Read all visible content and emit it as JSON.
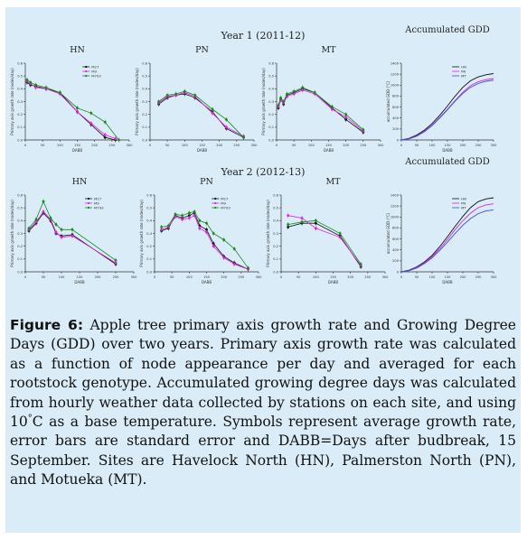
{
  "figure": {
    "row_titles": [
      "Year 1 (2011-12)",
      "Year 2 (2012-13)"
    ],
    "caption": {
      "label": "Figure 6:",
      "text_1": "Apple tree primary axis growth rate and Growing Degree Days (GDD) over two years. Primary axis growth rate was calculated as a function of node appearance per day and averaged for each rootstock genotype. Accumulated growing degree days was calculated from hourly weather data collected by stations on each site, and using 10",
      "degree": "°",
      "text_2": "C as a base temperature. Symbols represent average growth rate, error bars are standard error and DABB=Days after budbreak, 15 September. Sites are Havelock North (HN), Palmerston North (PN), and Motueka (MT)."
    }
  },
  "colors": {
    "M27": "#111111",
    "M9": "#e020e0",
    "M793": "#1a8a1a",
    "GDD_HN": "#111111",
    "GDD_PN": "#e020e0",
    "GDD_MT": "#3050e0"
  },
  "chart_data": [
    {
      "type": "line",
      "title": "HN",
      "year": "Year 1 (2011-12)",
      "xlabel": "DABB",
      "ylabel": "Primary axis growth rate (nodes/day)",
      "xlim": [
        0,
        300
      ],
      "ylim": [
        0,
        0.6
      ],
      "xticks": [
        "0",
        "50",
        "100",
        "150",
        "200",
        "250",
        "300"
      ],
      "yticks": [
        "0.0",
        "0.1",
        "0.2",
        "0.3",
        "0.4",
        "0.5",
        "0.6"
      ],
      "legend": [
        "M27",
        "M9",
        "M793"
      ],
      "series": [
        {
          "name": "M27",
          "x": [
            5,
            15,
            30,
            60,
            100,
            150,
            190,
            230,
            260
          ],
          "y": [
            0.45,
            0.43,
            0.42,
            0.4,
            0.37,
            0.22,
            0.12,
            0.02,
            0.0
          ]
        },
        {
          "name": "M9",
          "x": [
            5,
            15,
            30,
            60,
            100,
            150,
            190,
            230,
            260
          ],
          "y": [
            0.46,
            0.44,
            0.41,
            0.4,
            0.36,
            0.22,
            0.13,
            0.04,
            0.01
          ]
        },
        {
          "name": "M793",
          "x": [
            5,
            15,
            30,
            60,
            100,
            150,
            190,
            230,
            270
          ],
          "y": [
            0.47,
            0.45,
            0.43,
            0.41,
            0.37,
            0.25,
            0.21,
            0.14,
            0.0
          ]
        }
      ]
    },
    {
      "type": "line",
      "title": "PN",
      "year": "Year 1 (2011-12)",
      "xlabel": "DABB",
      "ylabel": "Primary axis growth rate (nodes/day)",
      "xlim": [
        0,
        300
      ],
      "ylim": [
        0,
        0.6
      ],
      "xticks": [
        "0",
        "50",
        "100",
        "150",
        "200",
        "250",
        "300"
      ],
      "yticks": [
        "0.0",
        "0.1",
        "0.2",
        "0.3",
        "0.4",
        "0.5",
        "0.6"
      ],
      "series": [
        {
          "name": "M27",
          "x": [
            25,
            50,
            75,
            100,
            130,
            180,
            220,
            270
          ],
          "y": [
            0.28,
            0.33,
            0.35,
            0.36,
            0.33,
            0.22,
            0.09,
            0.02
          ]
        },
        {
          "name": "M9",
          "x": [
            25,
            50,
            75,
            100,
            130,
            180,
            220,
            270
          ],
          "y": [
            0.29,
            0.34,
            0.35,
            0.37,
            0.34,
            0.21,
            0.1,
            0.03
          ]
        },
        {
          "name": "M793",
          "x": [
            25,
            50,
            75,
            100,
            130,
            180,
            220,
            270
          ],
          "y": [
            0.3,
            0.35,
            0.36,
            0.38,
            0.35,
            0.24,
            0.16,
            0.02
          ]
        }
      ]
    },
    {
      "type": "line",
      "title": "MT",
      "year": "Year 1 (2011-12)",
      "xlabel": "DABB",
      "ylabel": "Primary axis growth rate (nodes/day)",
      "xlim": [
        0,
        300
      ],
      "ylim": [
        0,
        0.6
      ],
      "xticks": [
        "0",
        "50",
        "100",
        "150",
        "200",
        "250",
        "300"
      ],
      "yticks": [
        "0.0",
        "0.1",
        "0.2",
        "0.3",
        "0.4",
        "0.5",
        "0.6"
      ],
      "series": [
        {
          "name": "M27",
          "x": [
            5,
            12,
            20,
            30,
            50,
            75,
            110,
            160,
            200,
            250
          ],
          "y": [
            0.25,
            0.32,
            0.28,
            0.35,
            0.37,
            0.4,
            0.37,
            0.25,
            0.16,
            0.06
          ]
        },
        {
          "name": "M9",
          "x": [
            5,
            12,
            20,
            30,
            50,
            75,
            110,
            160,
            200,
            250
          ],
          "y": [
            0.26,
            0.31,
            0.29,
            0.34,
            0.36,
            0.39,
            0.36,
            0.24,
            0.18,
            0.07
          ]
        },
        {
          "name": "M793",
          "x": [
            5,
            12,
            20,
            30,
            50,
            75,
            110,
            160,
            200,
            250
          ],
          "y": [
            0.27,
            0.33,
            0.3,
            0.36,
            0.38,
            0.41,
            0.37,
            0.26,
            0.2,
            0.08
          ]
        }
      ]
    },
    {
      "type": "line",
      "title": "Accumulated GDD",
      "year": "Year 1 (2011-12)",
      "xlabel": "DABB",
      "ylabel": "accumulated GDD (°C)",
      "xlim": [
        0,
        300
      ],
      "ylim": [
        0,
        1400
      ],
      "xticks": [
        "0",
        "50",
        "100",
        "150",
        "200",
        "250",
        "300"
      ],
      "yticks": [
        "0",
        "200",
        "400",
        "600",
        "800",
        "1000",
        "1200",
        "1400"
      ],
      "legend": [
        "HN",
        "PN",
        "MT"
      ],
      "series": [
        {
          "name": "HN",
          "x": [
            0,
            25,
            50,
            75,
            100,
            125,
            150,
            175,
            200,
            225,
            250,
            275,
            300
          ],
          "y": [
            0,
            30,
            90,
            180,
            300,
            450,
            620,
            800,
            960,
            1080,
            1150,
            1190,
            1210
          ]
        },
        {
          "name": "PN",
          "x": [
            0,
            25,
            50,
            75,
            100,
            125,
            150,
            175,
            200,
            225,
            250,
            275,
            300
          ],
          "y": [
            0,
            25,
            75,
            160,
            270,
            410,
            560,
            720,
            870,
            990,
            1060,
            1100,
            1120
          ]
        },
        {
          "name": "MT",
          "x": [
            0,
            25,
            50,
            75,
            100,
            125,
            150,
            175,
            200,
            225,
            250,
            275,
            300
          ],
          "y": [
            0,
            20,
            70,
            150,
            260,
            400,
            550,
            710,
            850,
            960,
            1030,
            1070,
            1090
          ]
        }
      ]
    },
    {
      "type": "line",
      "title": "HN",
      "year": "Year 2 (2012-13)",
      "xlabel": "DABB",
      "ylabel": "Primary axis growth rate (nodes/day)",
      "xlim": [
        0,
        300
      ],
      "ylim": [
        0,
        0.6
      ],
      "xticks": [
        "0",
        "50",
        "100",
        "150",
        "200",
        "250",
        "300"
      ],
      "yticks": [
        "0.0",
        "0.1",
        "0.2",
        "0.3",
        "0.4",
        "0.5",
        "0.6"
      ],
      "legend": [
        "M27",
        "M9",
        "M793"
      ],
      "series": [
        {
          "name": "M27",
          "x": [
            10,
            30,
            50,
            70,
            85,
            100,
            130,
            250
          ],
          "y": [
            0.32,
            0.38,
            0.46,
            0.4,
            0.3,
            0.28,
            0.29,
            0.06
          ]
        },
        {
          "name": "M9",
          "x": [
            10,
            30,
            50,
            70,
            85,
            100,
            130,
            250
          ],
          "y": [
            0.33,
            0.39,
            0.47,
            0.41,
            0.31,
            0.27,
            0.28,
            0.07
          ]
        },
        {
          "name": "M793",
          "x": [
            10,
            30,
            50,
            70,
            85,
            100,
            130,
            250
          ],
          "y": [
            0.34,
            0.41,
            0.55,
            0.42,
            0.37,
            0.33,
            0.33,
            0.09
          ]
        }
      ]
    },
    {
      "type": "line",
      "title": "PN",
      "year": "Year 2 (2012-13)",
      "xlabel": "DABB",
      "ylabel": "Primary axis growth rate (nodes/day)",
      "xlim": [
        0,
        300
      ],
      "ylim": [
        0,
        0.6
      ],
      "xticks": [
        "0",
        "50",
        "100",
        "150",
        "200",
        "250",
        "300"
      ],
      "yticks": [
        "0.0",
        "0.1",
        "0.2",
        "0.3",
        "0.4",
        "0.5",
        "0.6"
      ],
      "legend": [
        "M27",
        "M9",
        "M793"
      ],
      "series": [
        {
          "name": "M27",
          "x": [
            20,
            40,
            60,
            80,
            100,
            115,
            130,
            150,
            170,
            200,
            230,
            270
          ],
          "y": [
            0.32,
            0.34,
            0.44,
            0.42,
            0.44,
            0.46,
            0.36,
            0.33,
            0.22,
            0.12,
            0.07,
            0.02
          ]
        },
        {
          "name": "M9",
          "x": [
            20,
            40,
            60,
            80,
            100,
            115,
            130,
            150,
            170,
            200,
            230,
            270
          ],
          "y": [
            0.33,
            0.35,
            0.43,
            0.41,
            0.42,
            0.44,
            0.34,
            0.31,
            0.2,
            0.11,
            0.06,
            0.02
          ]
        },
        {
          "name": "M793",
          "x": [
            20,
            40,
            60,
            80,
            100,
            115,
            130,
            150,
            170,
            200,
            230,
            270
          ],
          "y": [
            0.35,
            0.36,
            0.45,
            0.44,
            0.46,
            0.47,
            0.4,
            0.38,
            0.3,
            0.25,
            0.18,
            0.03
          ]
        }
      ]
    },
    {
      "type": "line",
      "title": "MT",
      "year": "Year 2 (2012-13)",
      "xlabel": "DABB",
      "ylabel": "Primary axis growth rate (nodes/day)",
      "xlim": [
        0,
        300
      ],
      "ylim": [
        0,
        0.6
      ],
      "xticks": [
        "0",
        "50",
        "100",
        "150",
        "200",
        "250",
        "300"
      ],
      "yticks": [
        "0.0",
        "0.1",
        "0.2",
        "0.3",
        "0.4",
        "0.5",
        "0.6"
      ],
      "series": [
        {
          "name": "M27",
          "x": [
            20,
            60,
            100,
            170,
            230
          ],
          "y": [
            0.35,
            0.38,
            0.38,
            0.28,
            0.04
          ]
        },
        {
          "name": "M9",
          "x": [
            20,
            60,
            100,
            170,
            230
          ],
          "y": [
            0.44,
            0.42,
            0.34,
            0.27,
            0.05
          ]
        },
        {
          "name": "M793",
          "x": [
            20,
            60,
            100,
            170,
            230
          ],
          "y": [
            0.37,
            0.39,
            0.4,
            0.3,
            0.06
          ]
        }
      ]
    },
    {
      "type": "line",
      "title": "Accumulated GDD",
      "year": "Year 2 (2012-13)",
      "xlabel": "DABB",
      "ylabel": "accumulated GDD (°C)",
      "xlim": [
        0,
        300
      ],
      "ylim": [
        0,
        1400
      ],
      "xticks": [
        "0",
        "50",
        "100",
        "150",
        "200",
        "250",
        "300"
      ],
      "yticks": [
        "0",
        "200",
        "400",
        "600",
        "800",
        "1000",
        "1200",
        "1400"
      ],
      "legend": [
        "HN",
        "PN",
        "MT"
      ],
      "series": [
        {
          "name": "HN",
          "x": [
            0,
            25,
            50,
            75,
            100,
            125,
            150,
            175,
            200,
            225,
            250,
            275,
            300
          ],
          "y": [
            0,
            30,
            90,
            180,
            300,
            460,
            640,
            830,
            1010,
            1170,
            1280,
            1330,
            1350
          ]
        },
        {
          "name": "PN",
          "x": [
            0,
            25,
            50,
            75,
            100,
            125,
            150,
            175,
            200,
            225,
            250,
            275,
            300
          ],
          "y": [
            0,
            25,
            80,
            165,
            280,
            420,
            590,
            770,
            930,
            1070,
            1170,
            1220,
            1240
          ]
        },
        {
          "name": "MT",
          "x": [
            0,
            25,
            50,
            75,
            100,
            125,
            150,
            175,
            200,
            225,
            250,
            275,
            300
          ],
          "y": [
            0,
            20,
            70,
            150,
            255,
            390,
            540,
            700,
            850,
            970,
            1060,
            1110,
            1130
          ]
        }
      ]
    }
  ]
}
